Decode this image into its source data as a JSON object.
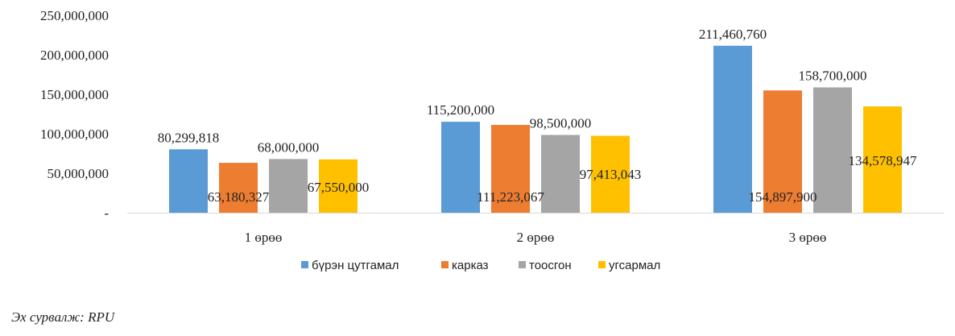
{
  "chart_data": {
    "type": "bar",
    "categories": [
      "1 өрөө",
      "2 өрөө",
      "3 өрөө"
    ],
    "series": [
      {
        "name": "бүрэн цутгамал",
        "color": "#5B9BD5",
        "values": [
          80299818,
          115200000,
          211460760
        ]
      },
      {
        "name": "карказ",
        "color": "#ED7D31",
        "values": [
          63180327,
          111223067,
          154897900
        ]
      },
      {
        "name": "тоосгон",
        "color": "#A5A5A5",
        "values": [
          68000000,
          98500000,
          158700000
        ]
      },
      {
        "name": "угсармал",
        "color": "#FFC000",
        "values": [
          67550000,
          97413043,
          134578947
        ]
      }
    ],
    "data_labels": [
      [
        "80,299,818",
        "115,200,000",
        "211,460,760"
      ],
      [
        "63,180,327",
        "111,223,067",
        "154,897,900"
      ],
      [
        "68,000,000",
        "98,500,000",
        "158,700,000"
      ],
      [
        "67,550,000",
        "97,413,043",
        "134,578,947"
      ]
    ],
    "y_ticks": [
      0,
      50000000,
      100000000,
      150000000,
      200000000,
      250000000
    ],
    "y_tick_labels": [
      "-",
      "50,000,000",
      "100,000,000",
      "150,000,000",
      "200,000,000",
      "250,000,000"
    ],
    "ylim": [
      0,
      250000000
    ],
    "grid": false,
    "legend": "bottom"
  },
  "source_note": "Эх сурвалж: RPU"
}
